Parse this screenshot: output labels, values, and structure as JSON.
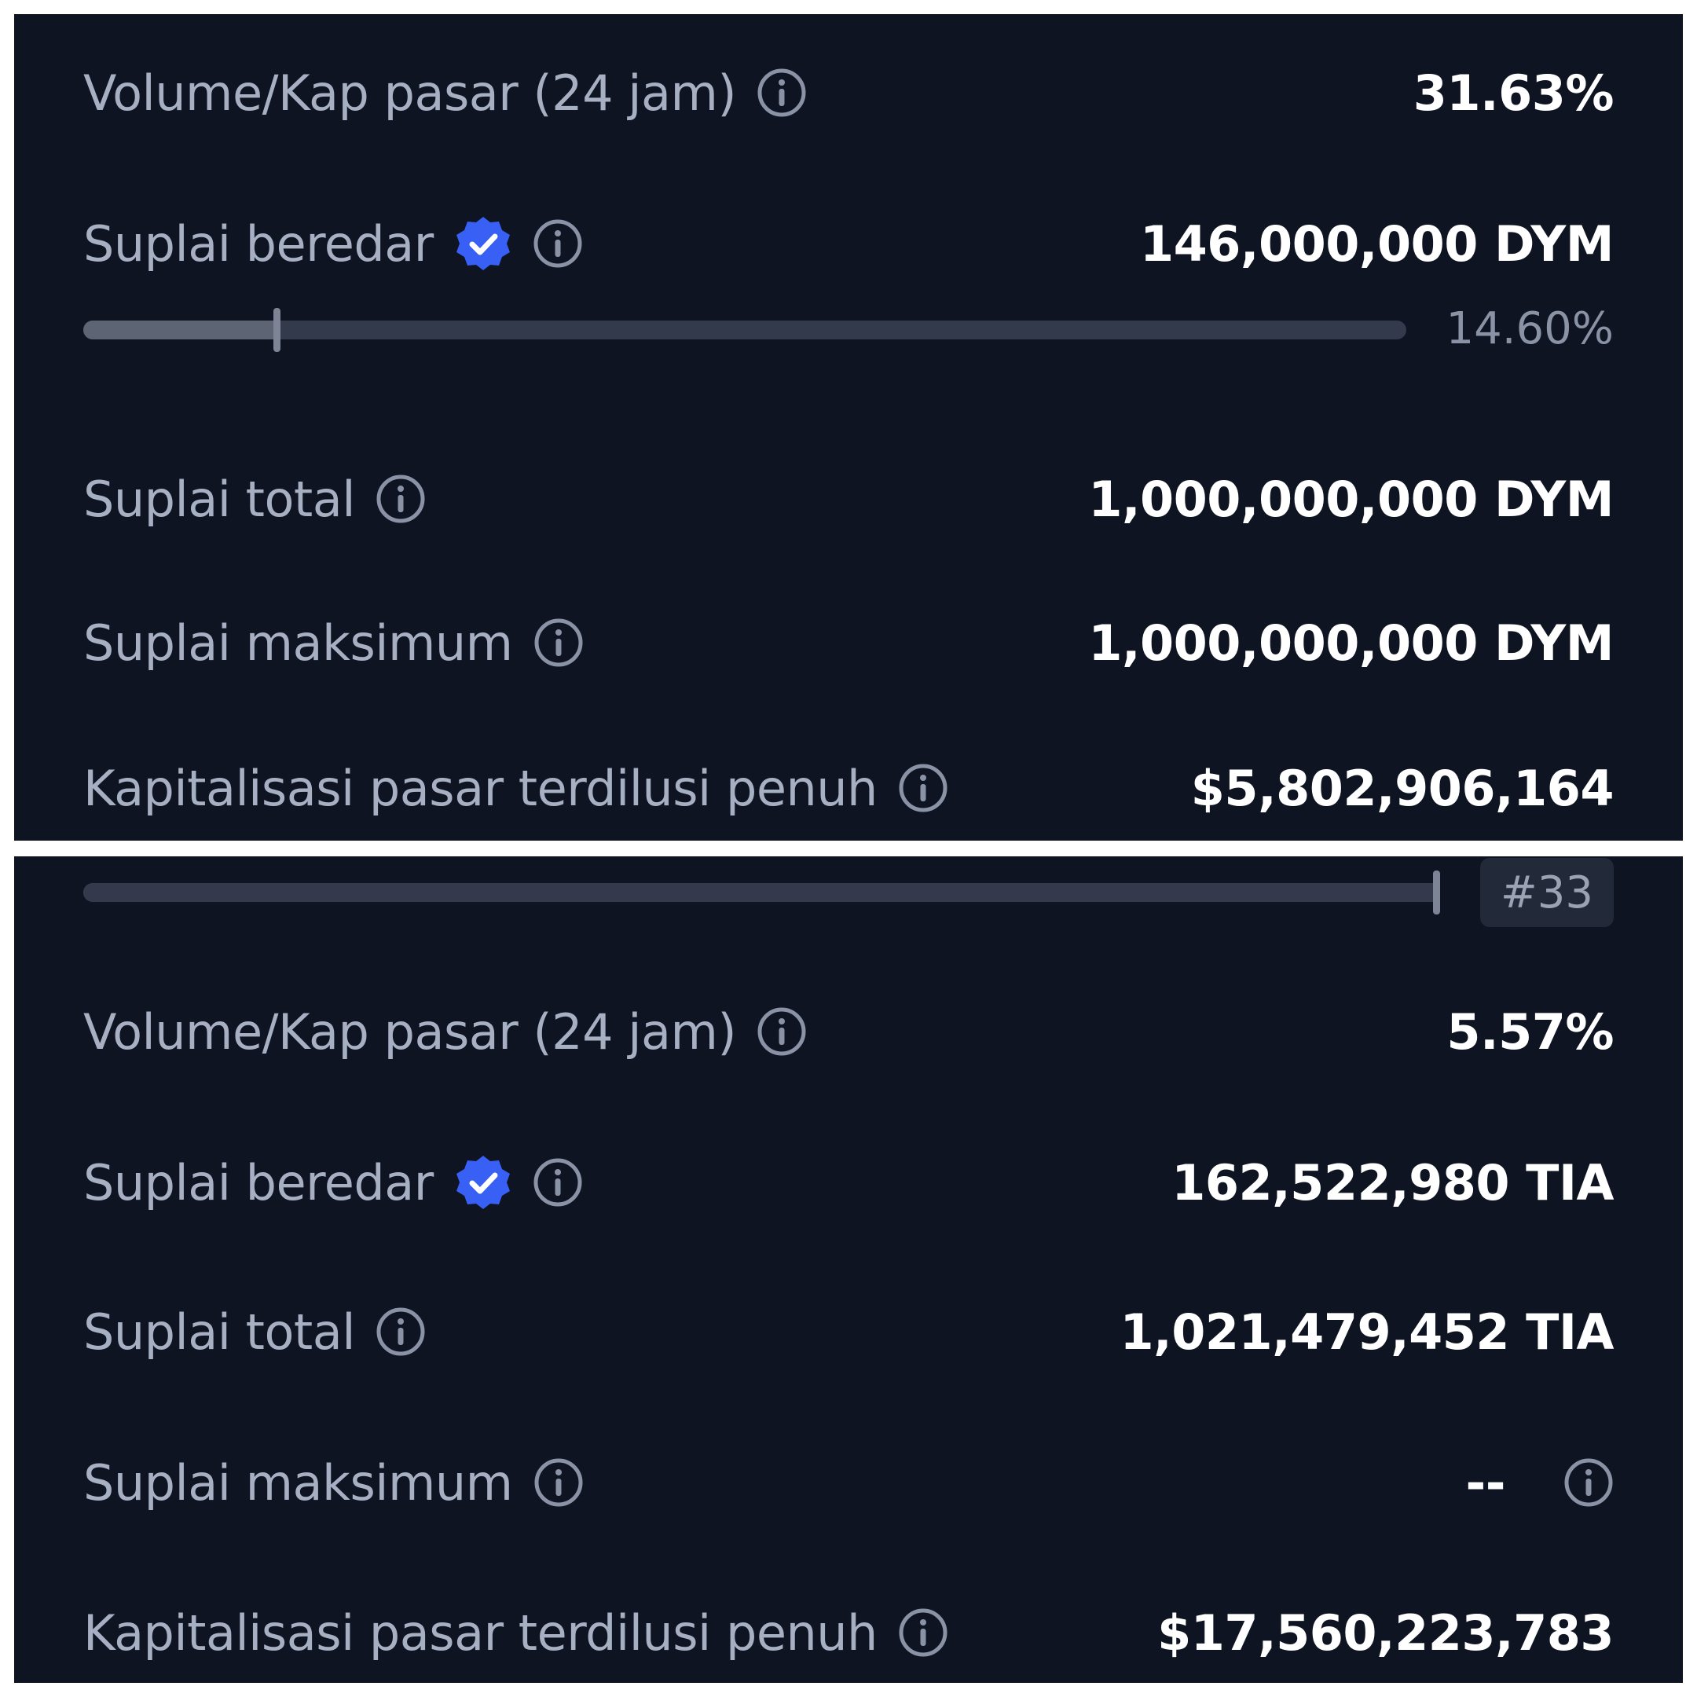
{
  "colors": {
    "panel_bg": "#0e1421",
    "label": "#a7b0c3",
    "value": "#ffffff",
    "bar_track": "#323a4b",
    "bar_fill": "#5d6474",
    "verified_badge": "#3860f5"
  },
  "top": {
    "volume_ratio": {
      "label": "Volume/Kap pasar (24 jam)",
      "value": "31.63%",
      "icon": "info-icon"
    },
    "circulating": {
      "label": "Suplai beredar",
      "value": "146,000,000 DYM",
      "badge_icon": "verified-check-icon",
      "icon": "info-icon",
      "progress_pct": 14.6,
      "progress_text": "14.60%"
    },
    "total": {
      "label": "Suplai total",
      "value": "1,000,000,000 DYM",
      "icon": "info-icon"
    },
    "max": {
      "label": "Suplai maksimum",
      "value": "1,000,000,000 DYM",
      "icon": "info-icon"
    },
    "fdv": {
      "label": "Kapitalisasi pasar terdilusi penuh",
      "value": "$5,802,906,164",
      "icon": "info-icon"
    }
  },
  "bottom": {
    "rank_bar": {
      "progress_pct": 100,
      "rank": "#33"
    },
    "volume_ratio": {
      "label": "Volume/Kap pasar (24 jam)",
      "value": "5.57%",
      "icon": "info-icon"
    },
    "circulating": {
      "label": "Suplai beredar",
      "value": "162,522,980 TIA",
      "badge_icon": "verified-check-icon",
      "icon": "info-icon"
    },
    "total": {
      "label": "Suplai total",
      "value": "1,021,479,452 TIA",
      "icon": "info-icon"
    },
    "max": {
      "label": "Suplai maksimum",
      "value": "--",
      "icon": "info-icon"
    },
    "fdv": {
      "label": "Kapitalisasi pasar terdilusi penuh",
      "value": "$17,560,223,783",
      "icon": "info-icon"
    }
  }
}
